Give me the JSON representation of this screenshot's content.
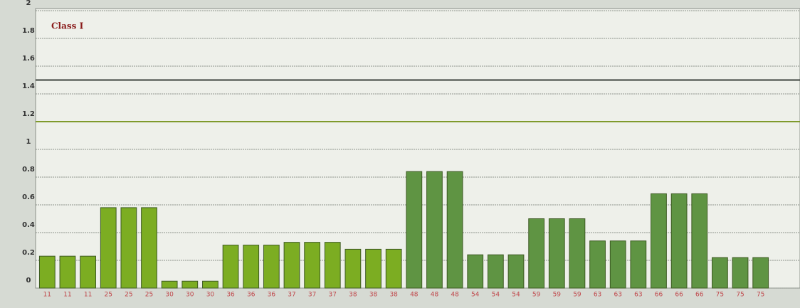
{
  "chart_data": {
    "type": "bar",
    "title": "Class I",
    "categories": [
      "11",
      "11",
      "11",
      "25",
      "25",
      "25",
      "30",
      "30",
      "30",
      "36",
      "36",
      "36",
      "37",
      "37",
      "37",
      "38",
      "38",
      "38",
      "48",
      "48",
      "48",
      "54",
      "54",
      "54",
      "59",
      "59",
      "59",
      "63",
      "63",
      "63",
      "66",
      "66",
      "66",
      "75",
      "75",
      "75"
    ],
    "values": [
      0.23,
      0.23,
      0.23,
      0.58,
      0.58,
      0.58,
      0.05,
      0.05,
      0.05,
      0.31,
      0.31,
      0.31,
      0.33,
      0.33,
      0.33,
      0.28,
      0.28,
      0.28,
      0.84,
      0.84,
      0.84,
      0.24,
      0.24,
      0.24,
      0.5,
      0.5,
      0.5,
      0.34,
      0.34,
      0.34,
      0.68,
      0.68,
      0.68,
      0.22,
      0.22,
      0.22
    ],
    "colors": [
      "#7cad22",
      "#7cad22",
      "#7cad22",
      "#7cad22",
      "#7cad22",
      "#7cad22",
      "#7cad22",
      "#7cad22",
      "#7cad22",
      "#7cad22",
      "#7cad22",
      "#7cad22",
      "#7cad22",
      "#7cad22",
      "#7cad22",
      "#7cad22",
      "#7cad22",
      "#7cad22",
      "#5f9443",
      "#5f9443",
      "#5f9443",
      "#5f9443",
      "#5f9443",
      "#5f9443",
      "#5f9443",
      "#5f9443",
      "#5f9443",
      "#5f9443",
      "#5f9443",
      "#5f9443",
      "#5f9443",
      "#5f9443",
      "#5f9443",
      "#5f9443",
      "#5f9443",
      "#5f9443"
    ],
    "ylim": [
      0,
      2
    ],
    "yticks": [
      0,
      0.2,
      0.4,
      0.6,
      0.8,
      1,
      1.2,
      1.4,
      1.6,
      1.8,
      2
    ],
    "grid": true,
    "reference_lines": [
      {
        "value": 1.5,
        "color": "#3a3f3a"
      },
      {
        "value": 1.2,
        "color": "#7f9a2c"
      }
    ]
  }
}
